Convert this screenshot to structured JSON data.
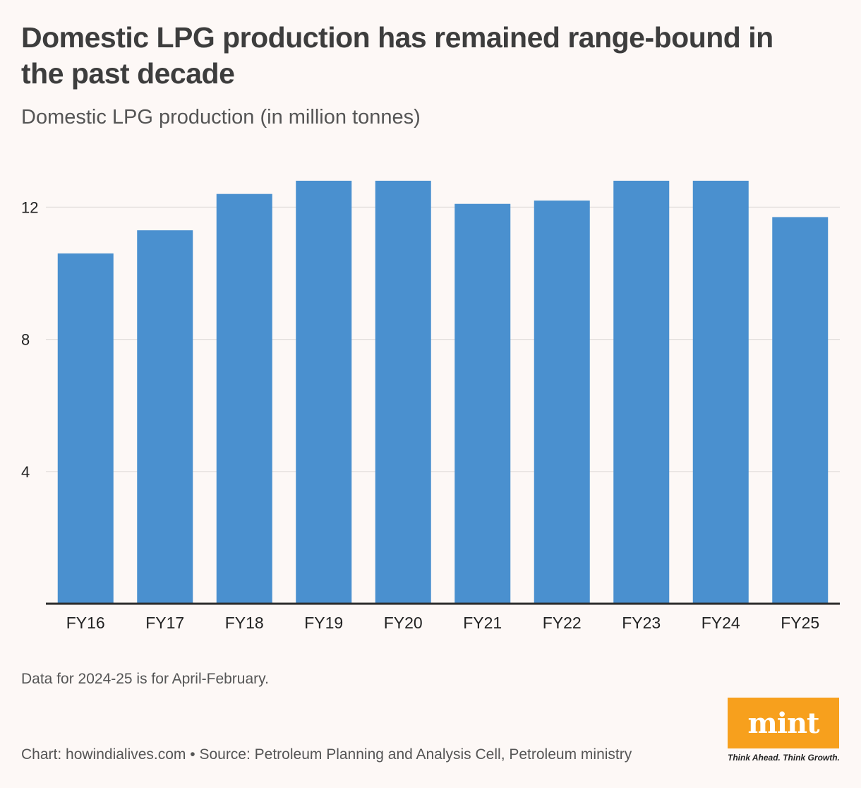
{
  "header": {
    "title": "Domestic LPG production has remained range-bound in the past decade",
    "subtitle": "Domestic LPG production (in million tonnes)"
  },
  "footer": {
    "note": "Data for 2024-25 is for April-February.",
    "source": "Chart: howindialives.com • Source: Petroleum Planning and Analysis Cell, Petroleum ministry",
    "logo_text": "mint",
    "tagline": "Think Ahead. Think Growth."
  },
  "colors": {
    "bar": "#4a90cf",
    "logo": "#f7a01d",
    "background": "#fdf8f6"
  },
  "chart_data": {
    "type": "bar",
    "title": "Domestic LPG production has remained range-bound in the past decade",
    "subtitle": "Domestic LPG production (in million tonnes)",
    "xlabel": "",
    "ylabel": "",
    "categories": [
      "FY16",
      "FY17",
      "FY18",
      "FY19",
      "FY20",
      "FY21",
      "FY22",
      "FY23",
      "FY24",
      "FY25"
    ],
    "values": [
      10.6,
      11.3,
      12.4,
      12.8,
      12.8,
      12.1,
      12.2,
      12.8,
      12.8,
      11.7
    ],
    "yticks": [
      4,
      8,
      12
    ],
    "ylim": [
      0,
      14
    ],
    "grid": true
  }
}
